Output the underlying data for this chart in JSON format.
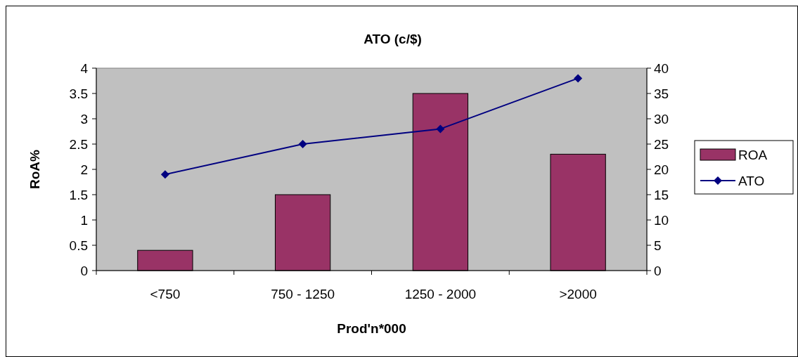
{
  "chart_data": {
    "type": "bar",
    "title": "ATO (c/$)",
    "xlabel": "Prod'n*000",
    "ylabel": "RoA%",
    "categories": [
      "<750",
      "750 - 1250",
      "1250 - 2000",
      ">2000"
    ],
    "series": [
      {
        "name": "ROA",
        "color": "#993366",
        "values": [
          0.4,
          1.5,
          3.5,
          2.3
        ]
      },
      {
        "name": "ATO",
        "type": "line",
        "axis": "y2",
        "color": "#000080",
        "marker": "diamond",
        "values": [
          19,
          25,
          28,
          38
        ]
      }
    ],
    "ylim": [
      0,
      4
    ],
    "yticks": [
      0,
      0.5,
      1,
      1.5,
      2,
      2.5,
      3,
      3.5,
      4
    ],
    "y2lim": [
      0,
      40
    ],
    "y2ticks": [
      0,
      5,
      10,
      15,
      20,
      25,
      30,
      35,
      40
    ],
    "grid": false,
    "legend": "right"
  }
}
